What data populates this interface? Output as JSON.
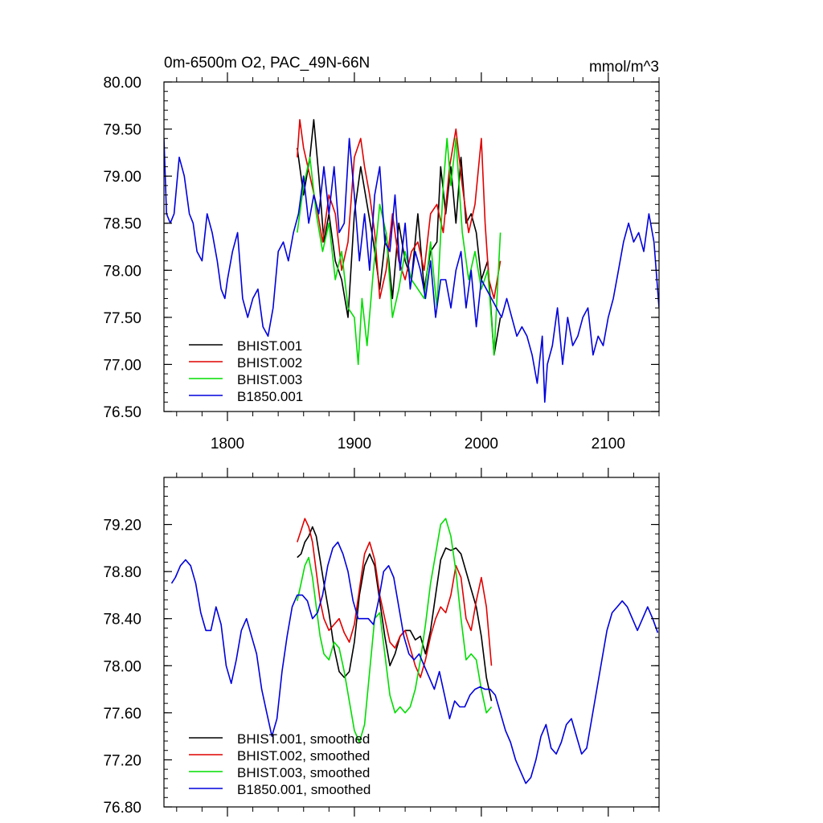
{
  "figure_title": "0m-6500m O2, PAC_49N-66N",
  "figure_units": "mmol/m^3",
  "colors": {
    "black": "#000000",
    "red": "#e00000",
    "green": "#00dd00",
    "blue": "#0000dd"
  },
  "chart_data": [
    {
      "type": "line",
      "title": "0m-6500m O2, PAC_49N-66N",
      "units": "mmol/m^3",
      "xlabel": "",
      "ylabel": "",
      "xlim": [
        1750,
        2140
      ],
      "ylim": [
        76.5,
        80.0
      ],
      "xticks": [
        1800,
        1900,
        2000,
        2100
      ],
      "xtick_labels": [
        "1800",
        "1900",
        "2000",
        "2100"
      ],
      "yticks": [
        80.0,
        79.5,
        79.0,
        78.5,
        78.0,
        77.5,
        77.0,
        76.5
      ],
      "ytick_labels": [
        "80.00",
        "79.50",
        "79.00",
        "78.50",
        "78.00",
        "77.50",
        "77.00",
        "76.50"
      ],
      "legend": "bottom-left",
      "series": [
        {
          "name": "BHIST.001",
          "color": "#000000",
          "x": [
            1855,
            1860,
            1865,
            1868,
            1872,
            1876,
            1880,
            1885,
            1890,
            1895,
            1900,
            1905,
            1910,
            1915,
            1920,
            1925,
            1930,
            1935,
            1940,
            1945,
            1950,
            1955,
            1960,
            1965,
            1968,
            1972,
            1976,
            1980,
            1984,
            1988,
            1992,
            1996,
            2000,
            2005,
            2010,
            2015
          ],
          "values": [
            79.3,
            78.8,
            79.2,
            79.6,
            79.0,
            78.3,
            78.6,
            78.1,
            77.9,
            77.5,
            78.6,
            79.1,
            78.7,
            78.3,
            77.8,
            78.4,
            77.7,
            78.5,
            78.1,
            77.9,
            78.6,
            77.8,
            78.2,
            78.3,
            79.1,
            78.6,
            79.1,
            78.5,
            79.2,
            78.5,
            78.6,
            78.4,
            77.9,
            78.1,
            77.1,
            77.5
          ]
        },
        {
          "name": "BHIST.002",
          "color": "#e00000",
          "x": [
            1855,
            1857,
            1860,
            1865,
            1870,
            1875,
            1880,
            1885,
            1890,
            1895,
            1900,
            1905,
            1908,
            1912,
            1916,
            1920,
            1925,
            1930,
            1935,
            1940,
            1945,
            1950,
            1955,
            1960,
            1965,
            1970,
            1975,
            1980,
            1985,
            1990,
            1995,
            2000,
            2003,
            2006,
            2010,
            2015
          ],
          "values": [
            79.2,
            79.6,
            79.3,
            79.0,
            78.7,
            78.3,
            78.8,
            78.6,
            78.0,
            78.3,
            79.2,
            79.4,
            79.1,
            78.8,
            78.4,
            77.7,
            78.0,
            78.6,
            78.1,
            77.9,
            78.2,
            78.3,
            78.0,
            78.6,
            78.7,
            78.4,
            79.1,
            79.5,
            78.9,
            78.4,
            78.7,
            79.4,
            78.5,
            77.9,
            77.7,
            78.1
          ]
        },
        {
          "name": "BHIST.003",
          "color": "#00dd00",
          "x": [
            1855,
            1860,
            1865,
            1870,
            1875,
            1880,
            1885,
            1890,
            1895,
            1900,
            1903,
            1906,
            1910,
            1915,
            1920,
            1925,
            1930,
            1935,
            1940,
            1945,
            1950,
            1955,
            1960,
            1965,
            1970,
            1973,
            1976,
            1980,
            1985,
            1990,
            1995,
            2000,
            2005,
            2010,
            2015
          ],
          "values": [
            78.4,
            78.9,
            79.2,
            78.6,
            78.2,
            78.5,
            77.9,
            78.2,
            77.6,
            77.5,
            77.0,
            77.7,
            77.2,
            78.0,
            78.7,
            78.4,
            77.5,
            77.8,
            78.2,
            77.9,
            77.8,
            77.7,
            78.3,
            77.6,
            78.9,
            79.4,
            78.9,
            79.4,
            78.4,
            77.9,
            78.2,
            77.8,
            78.0,
            77.1,
            78.4
          ]
        },
        {
          "name": "B1850.001",
          "color": "#0000dd",
          "x": [
            1750,
            1752,
            1755,
            1758,
            1762,
            1766,
            1770,
            1773,
            1776,
            1780,
            1784,
            1788,
            1792,
            1795,
            1798,
            1800,
            1804,
            1808,
            1812,
            1816,
            1820,
            1824,
            1828,
            1832,
            1836,
            1840,
            1844,
            1848,
            1852,
            1856,
            1860,
            1864,
            1868,
            1872,
            1876,
            1880,
            1884,
            1888,
            1892,
            1896,
            1900,
            1904,
            1908,
            1912,
            1916,
            1920,
            1924,
            1928,
            1932,
            1936,
            1940,
            1944,
            1948,
            1952,
            1956,
            1960,
            1964,
            1968,
            1972,
            1976,
            1980,
            1984,
            1988,
            1992,
            1996,
            2000,
            2004,
            2008,
            2012,
            2016,
            2020,
            2024,
            2028,
            2032,
            2036,
            2040,
            2044,
            2048,
            2050,
            2052,
            2056,
            2060,
            2064,
            2068,
            2072,
            2076,
            2080,
            2084,
            2088,
            2092,
            2096,
            2100,
            2104,
            2108,
            2112,
            2116,
            2120,
            2124,
            2128,
            2132,
            2136,
            2140
          ],
          "values": [
            79.4,
            78.6,
            78.5,
            78.6,
            79.2,
            79.0,
            78.6,
            78.5,
            78.2,
            78.1,
            78.6,
            78.4,
            78.1,
            77.8,
            77.7,
            77.9,
            78.2,
            78.4,
            77.7,
            77.5,
            77.7,
            77.8,
            77.4,
            77.3,
            77.6,
            78.2,
            78.3,
            78.1,
            78.4,
            78.6,
            79.0,
            78.5,
            78.8,
            78.6,
            79.1,
            78.6,
            79.1,
            78.4,
            78.5,
            79.4,
            78.8,
            78.1,
            78.6,
            78.0,
            78.8,
            79.1,
            78.3,
            78.2,
            78.8,
            78.0,
            78.5,
            77.8,
            78.2,
            78.0,
            77.7,
            78.1,
            77.5,
            77.9,
            77.9,
            77.6,
            78.0,
            78.2,
            77.6,
            78.0,
            77.4,
            77.9,
            77.8,
            77.7,
            77.6,
            77.5,
            77.7,
            77.5,
            77.3,
            77.4,
            77.3,
            77.1,
            76.8,
            77.3,
            76.6,
            77.0,
            77.2,
            77.6,
            77.0,
            77.5,
            77.2,
            77.3,
            77.5,
            77.6,
            77.1,
            77.3,
            77.2,
            77.5,
            77.7,
            78.0,
            78.3,
            78.5,
            78.3,
            78.4,
            78.2,
            78.6,
            78.3,
            77.6
          ]
        }
      ]
    },
    {
      "type": "line",
      "title": "",
      "xlabel": "",
      "ylabel": "",
      "xlim": [
        1750,
        2140
      ],
      "ylim": [
        76.8,
        79.6
      ],
      "xticks": [
        1800,
        1900,
        2000,
        2100
      ],
      "xtick_labels": [
        "",
        "",
        "",
        ""
      ],
      "yticks": [
        79.2,
        78.8,
        78.4,
        78.0,
        77.6,
        77.2,
        76.8
      ],
      "ytick_labels": [
        "79.20",
        "78.80",
        "78.40",
        "78.00",
        "77.60",
        "77.20",
        "76.80"
      ],
      "legend": "bottom-left",
      "series": [
        {
          "name": "BHIST.001, smoothed",
          "color": "#000000",
          "x": [
            1855,
            1858,
            1861,
            1864,
            1867,
            1870,
            1873,
            1876,
            1880,
            1884,
            1888,
            1892,
            1896,
            1900,
            1904,
            1908,
            1912,
            1916,
            1920,
            1924,
            1928,
            1932,
            1936,
            1940,
            1944,
            1948,
            1952,
            1956,
            1960,
            1964,
            1968,
            1972,
            1976,
            1980,
            1984,
            1988,
            1992,
            1996,
            2000,
            2004,
            2008
          ],
          "values": [
            78.92,
            78.95,
            79.05,
            79.1,
            79.18,
            79.1,
            78.9,
            78.7,
            78.45,
            78.15,
            77.95,
            77.9,
            77.95,
            78.2,
            78.6,
            78.85,
            78.95,
            78.85,
            78.55,
            78.25,
            78.0,
            78.1,
            78.25,
            78.3,
            78.3,
            78.22,
            78.25,
            78.1,
            78.3,
            78.6,
            78.9,
            79.0,
            78.98,
            79.0,
            78.95,
            78.8,
            78.65,
            78.5,
            78.25,
            77.9,
            77.7
          ]
        },
        {
          "name": "BHIST.002, smoothed",
          "color": "#e00000",
          "x": [
            1855,
            1858,
            1861,
            1864,
            1867,
            1870,
            1873,
            1876,
            1880,
            1884,
            1888,
            1892,
            1896,
            1900,
            1904,
            1908,
            1912,
            1916,
            1920,
            1924,
            1928,
            1932,
            1936,
            1940,
            1944,
            1948,
            1952,
            1956,
            1960,
            1964,
            1968,
            1972,
            1976,
            1980,
            1984,
            1988,
            1992,
            1996,
            2000,
            2004,
            2008
          ],
          "values": [
            79.05,
            79.15,
            79.25,
            79.18,
            79.05,
            78.8,
            78.55,
            78.4,
            78.3,
            78.35,
            78.4,
            78.28,
            78.2,
            78.35,
            78.65,
            78.95,
            79.05,
            78.9,
            78.6,
            78.4,
            78.2,
            78.15,
            78.25,
            78.3,
            78.15,
            78.0,
            77.9,
            78.05,
            78.25,
            78.4,
            78.5,
            78.45,
            78.6,
            78.85,
            78.75,
            78.4,
            78.3,
            78.55,
            78.75,
            78.5,
            78.0
          ]
        },
        {
          "name": "BHIST.003, smoothed",
          "color": "#00dd00",
          "x": [
            1855,
            1858,
            1861,
            1864,
            1867,
            1870,
            1873,
            1876,
            1880,
            1884,
            1888,
            1892,
            1896,
            1900,
            1904,
            1908,
            1912,
            1916,
            1920,
            1924,
            1928,
            1932,
            1936,
            1940,
            1944,
            1948,
            1952,
            1956,
            1960,
            1964,
            1968,
            1972,
            1976,
            1980,
            1984,
            1988,
            1992,
            1996,
            2000,
            2004,
            2008
          ],
          "values": [
            78.55,
            78.7,
            78.85,
            78.92,
            78.75,
            78.5,
            78.25,
            78.1,
            78.05,
            78.2,
            78.15,
            77.95,
            77.7,
            77.45,
            77.35,
            77.5,
            77.95,
            78.4,
            78.45,
            78.1,
            77.75,
            77.6,
            77.65,
            77.6,
            77.65,
            77.8,
            78.05,
            78.35,
            78.7,
            78.95,
            79.2,
            79.25,
            79.1,
            78.8,
            78.4,
            78.05,
            78.1,
            78.05,
            77.8,
            77.6,
            77.65
          ]
        },
        {
          "name": "B1850.001, smoothed",
          "color": "#0000dd",
          "x": [
            1756,
            1759,
            1763,
            1767,
            1771,
            1775,
            1779,
            1783,
            1787,
            1791,
            1795,
            1799,
            1803,
            1807,
            1811,
            1815,
            1819,
            1823,
            1827,
            1831,
            1835,
            1839,
            1843,
            1847,
            1851,
            1855,
            1859,
            1863,
            1867,
            1871,
            1875,
            1879,
            1883,
            1887,
            1891,
            1895,
            1899,
            1903,
            1907,
            1911,
            1915,
            1919,
            1923,
            1927,
            1931,
            1935,
            1939,
            1943,
            1947,
            1951,
            1955,
            1959,
            1963,
            1967,
            1971,
            1975,
            1979,
            1983,
            1987,
            1991,
            1995,
            1999,
            2003,
            2007,
            2011,
            2015,
            2019,
            2023,
            2027,
            2031,
            2035,
            2039,
            2043,
            2047,
            2051,
            2055,
            2059,
            2063,
            2067,
            2071,
            2075,
            2079,
            2083,
            2087,
            2091,
            2095,
            2099,
            2103,
            2107,
            2111,
            2115,
            2119,
            2123,
            2127,
            2131,
            2135,
            2139
          ],
          "values": [
            78.7,
            78.75,
            78.85,
            78.9,
            78.85,
            78.7,
            78.45,
            78.3,
            78.3,
            78.5,
            78.35,
            78.0,
            77.85,
            78.05,
            78.3,
            78.4,
            78.25,
            78.1,
            77.8,
            77.6,
            77.4,
            77.55,
            77.95,
            78.25,
            78.5,
            78.6,
            78.6,
            78.55,
            78.4,
            78.45,
            78.6,
            78.85,
            79.0,
            79.05,
            78.95,
            78.8,
            78.55,
            78.4,
            78.4,
            78.4,
            78.35,
            78.55,
            78.8,
            78.85,
            78.75,
            78.5,
            78.25,
            78.1,
            78.05,
            78.1,
            78.0,
            77.9,
            77.8,
            77.95,
            77.75,
            77.55,
            77.7,
            77.65,
            77.65,
            77.75,
            77.8,
            77.82,
            77.8,
            77.8,
            77.75,
            77.6,
            77.45,
            77.35,
            77.2,
            77.1,
            77.0,
            77.05,
            77.2,
            77.4,
            77.5,
            77.3,
            77.25,
            77.35,
            77.5,
            77.55,
            77.4,
            77.25,
            77.3,
            77.55,
            77.8,
            78.05,
            78.3,
            78.45,
            78.5,
            78.55,
            78.5,
            78.4,
            78.3,
            78.4,
            78.5,
            78.4,
            78.28
          ]
        }
      ]
    }
  ]
}
